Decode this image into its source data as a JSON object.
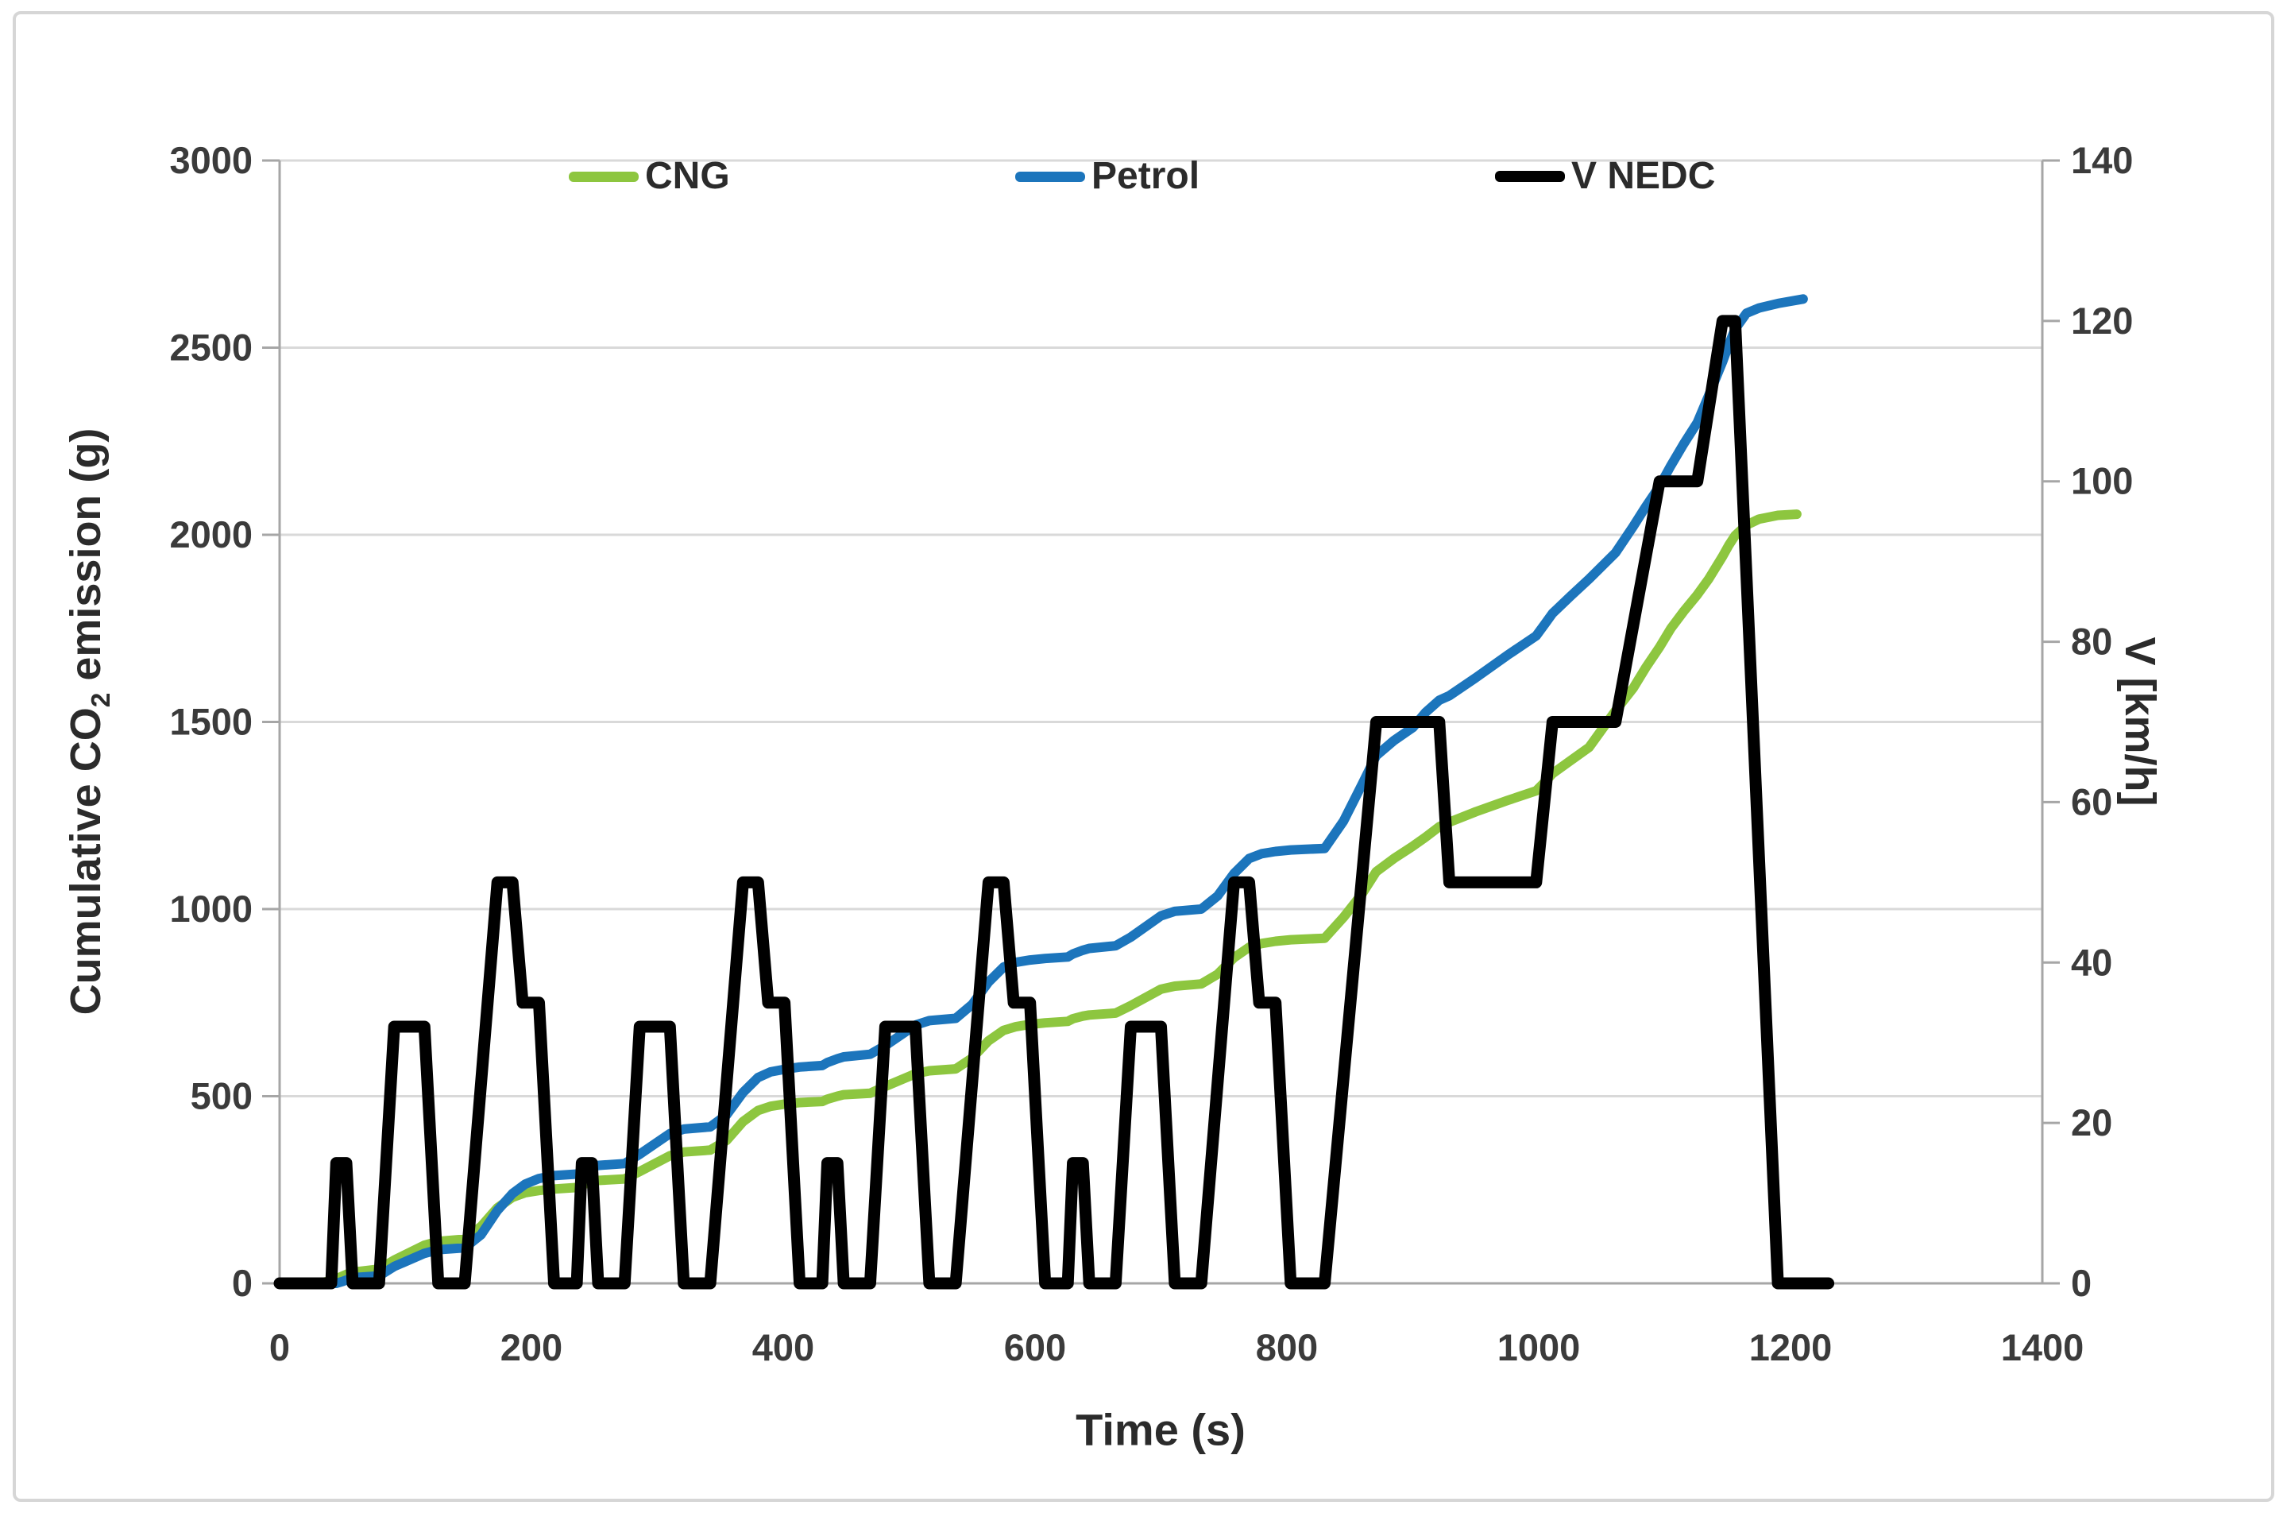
{
  "chart_data": {
    "type": "line",
    "title": "",
    "xlabel": "Time (s)",
    "ylabel_left": {
      "prefix": "Cumulative CO",
      "sub": "2",
      "suffix": " emission (g)"
    },
    "ylabel_right": "V [km/h]",
    "x_axis": {
      "min": 0,
      "max": 1400,
      "ticks": [
        0,
        200,
        400,
        600,
        800,
        1000,
        1200,
        1400
      ]
    },
    "y_axis_left": {
      "min": 0,
      "max": 3000,
      "ticks": [
        0,
        500,
        1000,
        1500,
        2000,
        2500,
        3000
      ]
    },
    "y_axis_right": {
      "min": 0,
      "max": 140,
      "ticks": [
        0,
        20,
        40,
        60,
        80,
        100,
        120,
        140
      ]
    },
    "grid": "horizontal",
    "legend": {
      "position": "top",
      "entries": [
        "CNG",
        "Petrol",
        "V NEDC"
      ]
    },
    "colors": {
      "cng": "#8dc63f",
      "petrol": "#1c75bc",
      "v_nedc": "#000000",
      "gridline": "#d9d9d9",
      "axis": "#a6a6a6",
      "tick_label": "#3b3b3b",
      "title": "#2b2b2b",
      "frame_border": "#d6d6d6",
      "background": "#ffffff"
    },
    "series": [
      {
        "name": "CNG",
        "axis": "left",
        "color_key": "cng",
        "stroke_width": 12,
        "points": [
          [
            0,
            0
          ],
          [
            30,
            0
          ],
          [
            38,
            5
          ],
          [
            45,
            12
          ],
          [
            53,
            24
          ],
          [
            58,
            30
          ],
          [
            79,
            38
          ],
          [
            91,
            62
          ],
          [
            115,
            102
          ],
          [
            126,
            112
          ],
          [
            147,
            118
          ],
          [
            160,
            152
          ],
          [
            173,
            202
          ],
          [
            185,
            230
          ],
          [
            195,
            242
          ],
          [
            206,
            248
          ],
          [
            218,
            252
          ],
          [
            236,
            256
          ],
          [
            240,
            263
          ],
          [
            248,
            271
          ],
          [
            253,
            275
          ],
          [
            274,
            279
          ],
          [
            286,
            299
          ],
          [
            310,
            341
          ],
          [
            321,
            351
          ],
          [
            342,
            356
          ],
          [
            355,
            382
          ],
          [
            368,
            432
          ],
          [
            380,
            462
          ],
          [
            390,
            473
          ],
          [
            401,
            479
          ],
          [
            413,
            483
          ],
          [
            431,
            486
          ],
          [
            435,
            492
          ],
          [
            443,
            500
          ],
          [
            448,
            504
          ],
          [
            469,
            508
          ],
          [
            481,
            526
          ],
          [
            505,
            560
          ],
          [
            516,
            568
          ],
          [
            537,
            573
          ],
          [
            550,
            602
          ],
          [
            563,
            648
          ],
          [
            575,
            676
          ],
          [
            585,
            686
          ],
          [
            596,
            692
          ],
          [
            608,
            696
          ],
          [
            626,
            700
          ],
          [
            630,
            707
          ],
          [
            638,
            714
          ],
          [
            643,
            717
          ],
          [
            664,
            722
          ],
          [
            676,
            742
          ],
          [
            700,
            786
          ],
          [
            711,
            794
          ],
          [
            732,
            800
          ],
          [
            745,
            826
          ],
          [
            758,
            870
          ],
          [
            770,
            898
          ],
          [
            780,
            908
          ],
          [
            791,
            914
          ],
          [
            803,
            918
          ],
          [
            830,
            922
          ],
          [
            845,
            978
          ],
          [
            860,
            1042
          ],
          [
            871,
            1100
          ],
          [
            885,
            1135
          ],
          [
            900,
            1168
          ],
          [
            910,
            1192
          ],
          [
            921,
            1220
          ],
          [
            929,
            1232
          ],
          [
            950,
            1260
          ],
          [
            975,
            1290
          ],
          [
            998,
            1316
          ],
          [
            1005,
            1340
          ],
          [
            1011,
            1362
          ],
          [
            1025,
            1396
          ],
          [
            1040,
            1432
          ],
          [
            1061,
            1530
          ],
          [
            1075,
            1590
          ],
          [
            1085,
            1645
          ],
          [
            1096,
            1700
          ],
          [
            1105,
            1750
          ],
          [
            1115,
            1795
          ],
          [
            1126,
            1840
          ],
          [
            1135,
            1882
          ],
          [
            1146,
            1942
          ],
          [
            1151,
            1972
          ],
          [
            1156,
            1998
          ],
          [
            1165,
            2026
          ],
          [
            1175,
            2042
          ],
          [
            1190,
            2052
          ],
          [
            1205,
            2055
          ]
        ]
      },
      {
        "name": "Petrol",
        "axis": "left",
        "color_key": "petrol",
        "stroke_width": 12,
        "points": [
          [
            0,
            0
          ],
          [
            45,
            0
          ],
          [
            50,
            5
          ],
          [
            58,
            15
          ],
          [
            79,
            20
          ],
          [
            91,
            45
          ],
          [
            115,
            80
          ],
          [
            126,
            90
          ],
          [
            147,
            95
          ],
          [
            160,
            130
          ],
          [
            173,
            195
          ],
          [
            185,
            240
          ],
          [
            195,
            265
          ],
          [
            206,
            280
          ],
          [
            218,
            288
          ],
          [
            236,
            292
          ],
          [
            240,
            300
          ],
          [
            248,
            310
          ],
          [
            253,
            315
          ],
          [
            274,
            320
          ],
          [
            286,
            345
          ],
          [
            310,
            400
          ],
          [
            321,
            412
          ],
          [
            342,
            418
          ],
          [
            355,
            450
          ],
          [
            368,
            510
          ],
          [
            380,
            550
          ],
          [
            390,
            565
          ],
          [
            401,
            572
          ],
          [
            413,
            578
          ],
          [
            431,
            582
          ],
          [
            435,
            590
          ],
          [
            443,
            600
          ],
          [
            448,
            605
          ],
          [
            469,
            612
          ],
          [
            481,
            635
          ],
          [
            505,
            690
          ],
          [
            516,
            702
          ],
          [
            537,
            708
          ],
          [
            550,
            745
          ],
          [
            563,
            805
          ],
          [
            575,
            845
          ],
          [
            585,
            858
          ],
          [
            596,
            864
          ],
          [
            608,
            868
          ],
          [
            626,
            872
          ],
          [
            630,
            880
          ],
          [
            638,
            890
          ],
          [
            643,
            895
          ],
          [
            664,
            902
          ],
          [
            676,
            925
          ],
          [
            700,
            982
          ],
          [
            711,
            994
          ],
          [
            732,
            1000
          ],
          [
            745,
            1035
          ],
          [
            758,
            1095
          ],
          [
            770,
            1135
          ],
          [
            780,
            1148
          ],
          [
            791,
            1154
          ],
          [
            803,
            1158
          ],
          [
            830,
            1162
          ],
          [
            845,
            1235
          ],
          [
            860,
            1335
          ],
          [
            871,
            1410
          ],
          [
            885,
            1450
          ],
          [
            900,
            1485
          ],
          [
            910,
            1525
          ],
          [
            921,
            1558
          ],
          [
            929,
            1570
          ],
          [
            950,
            1618
          ],
          [
            975,
            1678
          ],
          [
            998,
            1730
          ],
          [
            1005,
            1762
          ],
          [
            1011,
            1790
          ],
          [
            1025,
            1835
          ],
          [
            1040,
            1882
          ],
          [
            1061,
            1952
          ],
          [
            1075,
            2022
          ],
          [
            1085,
            2075
          ],
          [
            1096,
            2130
          ],
          [
            1105,
            2185
          ],
          [
            1115,
            2242
          ],
          [
            1126,
            2300
          ],
          [
            1135,
            2372
          ],
          [
            1146,
            2462
          ],
          [
            1151,
            2508
          ],
          [
            1156,
            2550
          ],
          [
            1165,
            2592
          ],
          [
            1175,
            2606
          ],
          [
            1190,
            2618
          ],
          [
            1210,
            2630
          ]
        ]
      },
      {
        "name": "V NEDC",
        "axis": "right",
        "color_key": "v_nedc",
        "stroke_width": 15,
        "points": [
          [
            0,
            0
          ],
          [
            41,
            0
          ],
          [
            45,
            15
          ],
          [
            53,
            15
          ],
          [
            58,
            0
          ],
          [
            79,
            0
          ],
          [
            91,
            32
          ],
          [
            115,
            32
          ],
          [
            126,
            0
          ],
          [
            147,
            0
          ],
          [
            173,
            50
          ],
          [
            185,
            50
          ],
          [
            193,
            35
          ],
          [
            206,
            35
          ],
          [
            218,
            0
          ],
          [
            236,
            0
          ],
          [
            240,
            15
          ],
          [
            248,
            15
          ],
          [
            253,
            0
          ],
          [
            274,
            0
          ],
          [
            286,
            32
          ],
          [
            310,
            32
          ],
          [
            321,
            0
          ],
          [
            342,
            0
          ],
          [
            368,
            50
          ],
          [
            380,
            50
          ],
          [
            388,
            35
          ],
          [
            401,
            35
          ],
          [
            413,
            0
          ],
          [
            431,
            0
          ],
          [
            435,
            15
          ],
          [
            443,
            15
          ],
          [
            448,
            0
          ],
          [
            469,
            0
          ],
          [
            481,
            32
          ],
          [
            505,
            32
          ],
          [
            516,
            0
          ],
          [
            537,
            0
          ],
          [
            563,
            50
          ],
          [
            575,
            50
          ],
          [
            583,
            35
          ],
          [
            596,
            35
          ],
          [
            608,
            0
          ],
          [
            626,
            0
          ],
          [
            630,
            15
          ],
          [
            638,
            15
          ],
          [
            643,
            0
          ],
          [
            664,
            0
          ],
          [
            676,
            32
          ],
          [
            700,
            32
          ],
          [
            711,
            0
          ],
          [
            732,
            0
          ],
          [
            758,
            50
          ],
          [
            770,
            50
          ],
          [
            778,
            35
          ],
          [
            791,
            35
          ],
          [
            803,
            0
          ],
          [
            830,
            0
          ],
          [
            871,
            70
          ],
          [
            921,
            70
          ],
          [
            929,
            50
          ],
          [
            998,
            50
          ],
          [
            1011,
            70
          ],
          [
            1061,
            70
          ],
          [
            1096,
            100
          ],
          [
            1126,
            100
          ],
          [
            1146,
            120
          ],
          [
            1156,
            120
          ],
          [
            1190,
            0
          ],
          [
            1230,
            0
          ]
        ]
      }
    ]
  }
}
